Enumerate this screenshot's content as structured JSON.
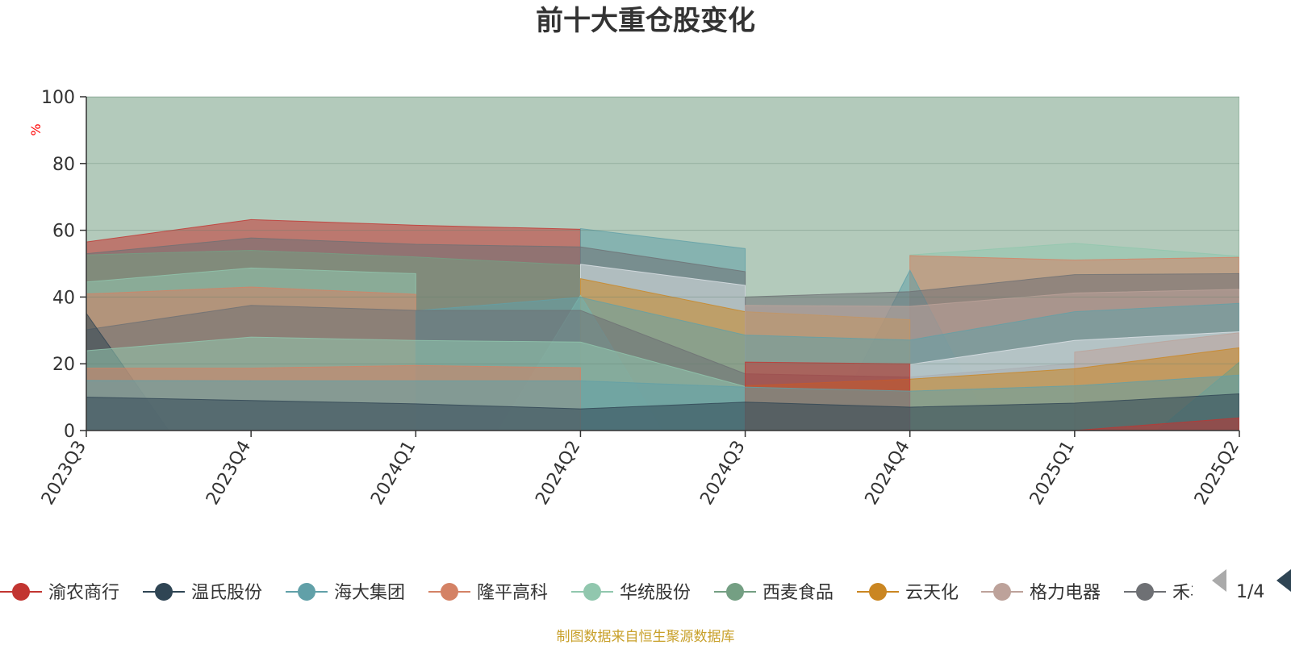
{
  "chart_data": {
    "type": "area",
    "title": "前十大重仓股变化",
    "ylabel": "%",
    "ylim": [
      0,
      100
    ],
    "yticks": [
      0,
      20,
      40,
      60,
      80,
      100
    ],
    "grid": true,
    "categories": [
      "2023Q3",
      "2023Q4",
      "2024Q1",
      "2024Q2",
      "2024Q3",
      "2024Q4",
      "2025Q1",
      "2025Q2"
    ],
    "series": [
      {
        "name": "渝农商行",
        "color": "#c23531",
        "values": [
          null,
          null,
          null,
          null,
          null,
          null,
          0,
          3.8
        ]
      },
      {
        "name": "温氏股份",
        "color": "#2f4554",
        "values": [
          10,
          9,
          8,
          6.5,
          8.5,
          7,
          8.2,
          11
        ]
      },
      {
        "name": "海大集团",
        "color": "#61a0a8",
        "values": [
          15,
          14.9,
          14.9,
          14.9,
          13,
          11.8,
          13.4,
          16.6
        ]
      },
      {
        "name": "隆平高科",
        "color": "#d48265",
        "values": [
          18.7,
          18.7,
          19.5,
          18.8,
          null,
          null,
          null,
          null
        ]
      },
      {
        "name": "华统股份",
        "color": "#91c7ae",
        "values": [
          23.9,
          28,
          27,
          26.5,
          13.2,
          null,
          null,
          null
        ]
      },
      {
        "name": "西麦食品",
        "color": "#749f83",
        "values": [
          null,
          null,
          null,
          null,
          null,
          null,
          null,
          20.5
        ]
      },
      {
        "name": "云天化",
        "color": "#ca8622",
        "values": [
          null,
          null,
          null,
          null,
          13.4,
          15.4,
          18.5,
          24.8
        ]
      },
      {
        "name": "格力电器",
        "color": "#bda29a",
        "values": [
          null,
          null,
          null,
          null,
          null,
          null,
          23.5,
          29.3
        ]
      },
      {
        "name": "禾丰股份",
        "color": "#6e7074",
        "values": [
          30.2,
          37.5,
          36,
          36,
          17,
          16,
          20.1,
          null
        ]
      },
      {
        "name": "",
        "color": "#dfe3e8",
        "values": [
          null,
          null,
          null,
          null,
          null,
          19.8,
          27,
          29.6
        ]
      },
      {
        "name": "",
        "color": "#2f4554",
        "values": [
          35.1,
          null,
          null,
          null,
          null,
          null,
          null,
          null
        ]
      },
      {
        "name": "",
        "color": "#61a0a8",
        "values": [
          null,
          null,
          35.9,
          39.9,
          28.6,
          27.1,
          35.6,
          38.1
        ]
      },
      {
        "name": "",
        "color": "#c23531",
        "values": [
          null,
          null,
          null,
          null,
          20.5,
          20,
          null,
          null
        ]
      },
      {
        "name": "",
        "color": "#d48265",
        "values": [
          40.9,
          43,
          40.8,
          null,
          null,
          null,
          null,
          null
        ]
      },
      {
        "name": "",
        "color": "#91c7ae",
        "values": [
          null,
          null,
          null,
          40.5,
          null,
          null,
          null,
          null
        ]
      },
      {
        "name": "",
        "color": "#ca8622",
        "values": [
          null,
          null,
          null,
          45.5,
          35.6,
          33.2,
          null,
          null
        ]
      },
      {
        "name": "",
        "color": "#bda29a",
        "values": [
          null,
          null,
          null,
          null,
          37.5,
          37.2,
          41.2,
          42.3
        ]
      },
      {
        "name": "",
        "color": "#91c7ae",
        "values": [
          44.5,
          48.7,
          47,
          null,
          null,
          null,
          null,
          null
        ]
      },
      {
        "name": "",
        "color": "#6e7074",
        "values": [
          null,
          null,
          null,
          null,
          40,
          41.6,
          46.7,
          47
        ]
      },
      {
        "name": "",
        "color": "#749f83",
        "values": [
          52.6,
          54,
          52,
          49.5,
          null,
          null,
          null,
          null
        ]
      },
      {
        "name": "",
        "color": "#dfe3e8",
        "values": [
          null,
          null,
          null,
          49.8,
          43.5,
          null,
          null,
          null
        ]
      },
      {
        "name": "",
        "color": "#61a0a8",
        "values": [
          null,
          null,
          null,
          null,
          null,
          48,
          null,
          null
        ]
      },
      {
        "name": "",
        "color": "#d48265",
        "values": [
          null,
          null,
          null,
          null,
          null,
          52.4,
          51.1,
          51.9
        ]
      },
      {
        "name": "",
        "color": "#6e7074",
        "values": [
          53,
          57.7,
          55.8,
          55,
          47.6,
          null,
          null,
          null
        ]
      },
      {
        "name": "",
        "color": "#91c7ae",
        "values": [
          null,
          null,
          null,
          null,
          null,
          52.6,
          56.1,
          52.2
        ]
      },
      {
        "name": "",
        "color": "#c23531",
        "values": [
          56.5,
          63.2,
          61.5,
          60.3,
          null,
          null,
          null,
          null
        ]
      },
      {
        "name": "",
        "color": "#61a0a8",
        "values": [
          null,
          null,
          null,
          60.5,
          54.5,
          null,
          null,
          null
        ]
      },
      {
        "name": "",
        "color": "#749f83",
        "values": [
          100,
          100,
          100,
          100,
          100,
          100,
          100,
          100
        ]
      }
    ]
  },
  "legend": {
    "items": [
      {
        "name": "渝农商行",
        "color": "#c23531"
      },
      {
        "name": "温氏股份",
        "color": "#2f4554"
      },
      {
        "name": "海大集团",
        "color": "#61a0a8"
      },
      {
        "name": "隆平高科",
        "color": "#d48265"
      },
      {
        "name": "华统股份",
        "color": "#91c7ae"
      },
      {
        "name": "西麦食品",
        "color": "#749f83"
      },
      {
        "name": "云天化",
        "color": "#ca8622"
      },
      {
        "name": "格力电器",
        "color": "#bda29a"
      },
      {
        "name": "禾丰股份",
        "color": "#6e7074"
      }
    ],
    "page": "1/4"
  },
  "footer": {
    "source": "制图数据来自恒生聚源数据库"
  },
  "colors": {
    "unit": "#ff0000",
    "source": "#c8a02a",
    "pager_active": "#2f4554",
    "pager_inactive": "#aaaaaa"
  }
}
